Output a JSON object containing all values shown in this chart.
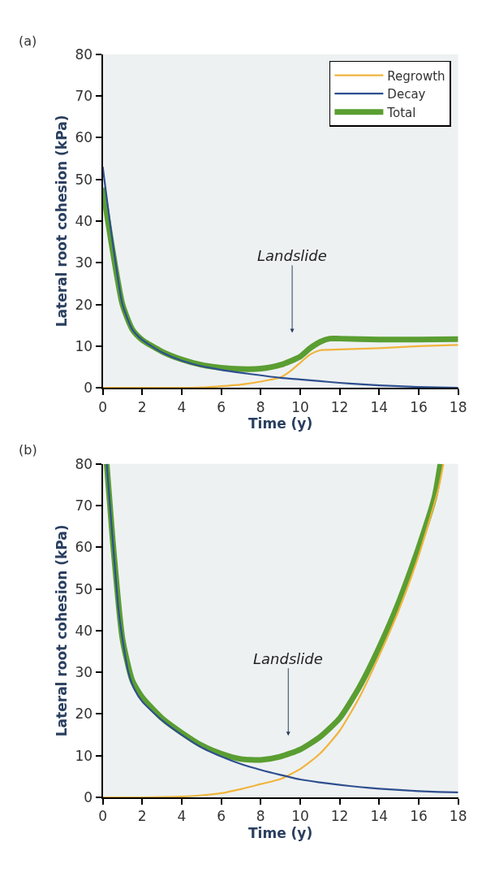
{
  "chart_data": [
    {
      "type": "line",
      "title": "(a)",
      "xlabel": "Time (y)",
      "ylabel": "Lateral root cohesion (kPa)",
      "xlim": [
        0,
        18
      ],
      "xticks": [
        0,
        2,
        4,
        6,
        8,
        10,
        12,
        14,
        16,
        18
      ],
      "ylim": [
        0,
        80
      ],
      "yticks": [
        0,
        10,
        20,
        30,
        40,
        50,
        60,
        70,
        80
      ],
      "grid": false,
      "legend": "top right",
      "marker": "none",
      "line_style": "solid",
      "annotations": [
        "Landslide"
      ],
      "series": [
        {
          "name": "Regrowth",
          "color": "#f0b43c",
          "x": [
            0,
            2,
            4,
            5,
            6,
            7,
            8,
            9,
            9.5,
            10,
            10.5,
            11,
            12,
            14,
            16,
            18
          ],
          "values": [
            0,
            0,
            0,
            0.1,
            0.4,
            0.8,
            1.5,
            2.5,
            4,
            6,
            8,
            9,
            9.2,
            9.5,
            10,
            10.3
          ]
        },
        {
          "name": "Decay",
          "color": "#2e4f8f",
          "x": [
            0,
            0.5,
            1,
            1.5,
            2,
            3,
            4,
            5,
            6,
            7,
            8,
            9,
            10,
            11,
            12,
            13,
            14,
            15,
            16,
            17,
            18
          ],
          "values": [
            53,
            35,
            20,
            14,
            11.5,
            8.5,
            6.5,
            5.2,
            4.3,
            3.6,
            3,
            2.4,
            2,
            1.6,
            1.2,
            0.9,
            0.6,
            0.4,
            0.2,
            0.1,
            0
          ]
        },
        {
          "name": "Total",
          "color": "#5a9e32",
          "x": [
            0,
            0.5,
            1,
            1.5,
            2,
            3,
            4,
            5,
            6,
            7,
            8,
            9,
            10,
            10.5,
            11,
            11.5,
            12,
            14,
            16,
            18
          ],
          "values": [
            48,
            33,
            20,
            14,
            11.5,
            8.7,
            6.8,
            5.5,
            4.8,
            4.5,
            4.6,
            5.5,
            7.5,
            9.5,
            11,
            11.8,
            11.8,
            11.6,
            11.6,
            11.7
          ]
        }
      ]
    },
    {
      "type": "line",
      "title": "(b)",
      "xlabel": "Time (y)",
      "ylabel": "Lateral root cohesion (kPa)",
      "xlim": [
        0,
        18
      ],
      "xticks": [
        0,
        2,
        4,
        6,
        8,
        10,
        12,
        14,
        16,
        18
      ],
      "ylim": [
        0,
        80
      ],
      "yticks": [
        0,
        10,
        20,
        30,
        40,
        50,
        60,
        70,
        80
      ],
      "grid": false,
      "marker": "none",
      "line_style": "solid",
      "annotations": [
        "Landslide"
      ],
      "series": [
        {
          "color": "#f0b43c",
          "x": [
            0,
            2,
            4,
            5,
            6,
            7,
            8,
            9,
            10,
            11,
            12,
            13,
            14,
            15,
            16,
            17,
            17.25
          ],
          "values": [
            0,
            0,
            0.2,
            0.5,
            1,
            2,
            3.2,
            4.4,
            6.8,
            10.5,
            16,
            24,
            34,
            45,
            58,
            74,
            80
          ]
        },
        {
          "color": "#2e4f8f",
          "x": [
            0.2,
            0.5,
            0.8,
            1,
            1.3,
            1.6,
            2,
            3,
            4,
            5,
            6,
            7,
            8,
            9,
            10,
            11,
            12,
            13,
            14,
            15,
            16,
            17,
            18
          ],
          "values": [
            80,
            62,
            45,
            38,
            30,
            26,
            23,
            18.5,
            15,
            12,
            9.8,
            8,
            6.6,
            5.4,
            4.3,
            3.6,
            3,
            2.5,
            2.1,
            1.8,
            1.5,
            1.3,
            1.2
          ]
        },
        {
          "color": "#5a9e32",
          "x": [
            0.2,
            0.5,
            1,
            1.5,
            2,
            3,
            4,
            5,
            6,
            7,
            8,
            9,
            10,
            11,
            12,
            13,
            14,
            15,
            16,
            16.8,
            17.1
          ],
          "values": [
            80,
            62,
            38,
            28,
            24,
            19,
            15.5,
            12.5,
            10.5,
            9.2,
            9,
            9.8,
            11.5,
            14.5,
            19,
            26.5,
            36,
            47,
            60,
            72,
            80
          ]
        }
      ]
    }
  ]
}
